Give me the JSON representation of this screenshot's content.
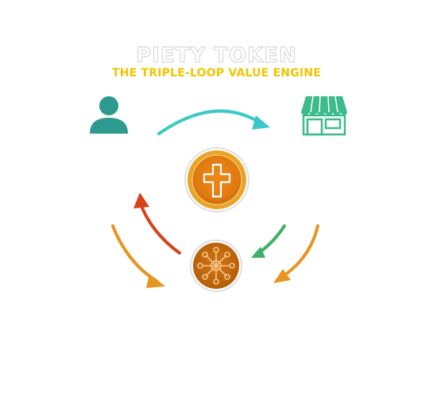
{
  "header": {
    "title": "PIETY TOKEN",
    "subtitle": "THE TRIPLE-LOOP VALUE ENGINE"
  },
  "colors": {
    "teal_arrow": "#3cc8c8",
    "user": "#2d9a8f",
    "store": "#3dbb8c",
    "coin_gold": "#e8a526",
    "coin_orange": "#e07a10",
    "network_brown": "#c86a0c",
    "arrow_orange": "#e69520",
    "arrow_red": "#d6421a",
    "arrow_green": "#3db068",
    "subtitle_yellow": "#f2c400"
  },
  "icons": [
    "user-icon",
    "store-icon",
    "cross-icon",
    "network-icon"
  ]
}
